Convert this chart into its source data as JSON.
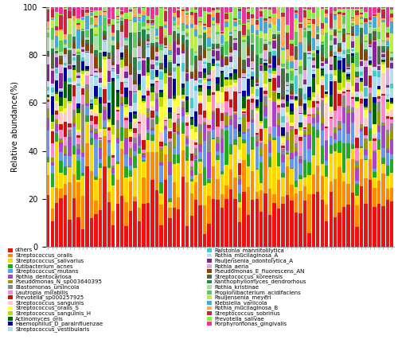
{
  "species": [
    "others",
    "Streptococcus_oralis",
    "Streptococcus_salivarius",
    "Cutibacterium_acnes",
    "Streptococcus_mutans",
    "Rothia_dentocariosa",
    "Pseudomonas_N_sp003640395",
    "Blastomonas_ursincola",
    "Lautropia_mirabilis",
    "Prevotella_sp000257925",
    "Streptococcus_sanguinis",
    "Streptococcus_oralis_S",
    "Streptococcus_sanguinis_H",
    "Actinomyces_oris",
    "Haemophilus_D_parainfluenzae",
    "Streptococcus_vestibularis",
    "Ralstonia_mannitolilytica",
    "Rothia_mucilaginosa_A",
    "Pauljensenia_odontolytica_A",
    "Rothia_aeria",
    "Pseudomonas_E_fluorescens_AN",
    "Streptococcus_koreensis",
    "Xanthophyllomyces_dendrorhous",
    "Rothia_kristinae",
    "Propionibacterium_acidifaciens",
    "Pauljensenia_meyeri",
    "Klebsiella_variicola",
    "Rothia_mucilaginosa_B",
    "Streptococcus_sobrinus",
    "Prevotella_salivae",
    "Porphyromonas_gingivalis"
  ],
  "colors": [
    "#EE1111",
    "#FF8C00",
    "#FFD700",
    "#22AA22",
    "#6699EE",
    "#AA44CC",
    "#999900",
    "#888888",
    "#FF88CC",
    "#CC1111",
    "#FFCCCC",
    "#FFFF44",
    "#BBDD00",
    "#006400",
    "#000099",
    "#AADDEE",
    "#44CCCC",
    "#BBDDEE",
    "#882299",
    "#DDAADD",
    "#884400",
    "#556644",
    "#228844",
    "#AADDAA",
    "#55CC55",
    "#BBEE44",
    "#44AADD",
    "#FFAA55",
    "#CC2244",
    "#88EE44",
    "#EE3399"
  ],
  "n_samples": 80,
  "ylabel": "Relative abundance(%)",
  "ylim": [
    0,
    100
  ],
  "dirichlet_weights": [
    8,
    4,
    3,
    1.5,
    2,
    1.5,
    0.8,
    0.8,
    1.2,
    1.0,
    1.2,
    1.0,
    1.0,
    1.2,
    1.2,
    1.0,
    0.8,
    1.0,
    0.8,
    0.8,
    0.8,
    0.8,
    0.8,
    0.8,
    0.8,
    0.8,
    0.8,
    0.8,
    0.8,
    0.8,
    0.8
  ]
}
